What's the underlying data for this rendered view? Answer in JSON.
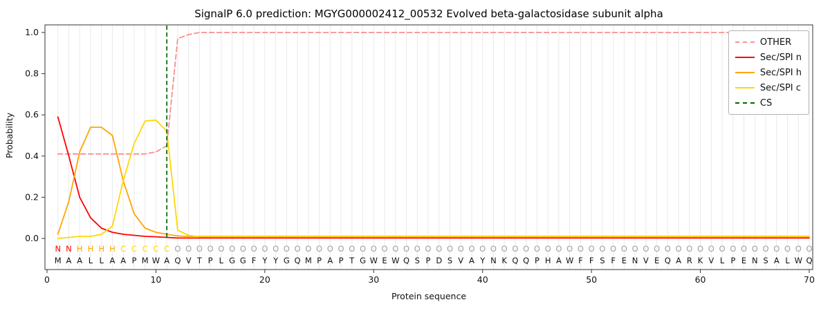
{
  "title": "SignalP 6.0 prediction: MGYG000002412_00532 Evolved beta-galactosidase subunit alpha",
  "axes": {
    "xlabel": "Protein sequence",
    "ylabel": "Probability",
    "x_ticks": [
      0,
      10,
      20,
      30,
      40,
      50,
      60,
      70
    ],
    "y_ticks": [
      0.0,
      0.2,
      0.4,
      0.6,
      0.8,
      1.0
    ],
    "xlim": [
      0,
      70.5
    ],
    "ylim": [
      0,
      1.05
    ],
    "grid": "vertical-per-residue"
  },
  "legend": {
    "position": "upper-right",
    "entries": [
      {
        "label": "OTHER",
        "color": "#f78f8f",
        "dash": true
      },
      {
        "label": "Sec/SPI n",
        "color": "#ff0000",
        "dash": false
      },
      {
        "label": "Sec/SPI h",
        "color": "#ffa500",
        "dash": false
      },
      {
        "label": "Sec/SPI c",
        "color": "#ffd700",
        "dash": false
      },
      {
        "label": "CS",
        "color": "#006400",
        "dash": true
      }
    ]
  },
  "chart_data": {
    "type": "line",
    "x_start": 1,
    "x_step": 1,
    "cs_position": 11,
    "cs_color": "#006400",
    "sequence": "MAALLAAPMWAQVTPLGGFYYGQMPAPTGWEWQSPDSVAYNKQQPHAWFFSFENVEQARKVLPENSALWQ",
    "regions": "NNHHHHCCCCCOOOOOOOOOOOOOOOOOOOOOOOOOOOOOOOOOOOOOOOOOOOOOOOOOOOOOOOOOO",
    "region_colors": {
      "N": "#ff0000",
      "H": "#ffa500",
      "C": "#ffd700",
      "O": "#9e9e9e"
    },
    "series": [
      {
        "name": "OTHER",
        "color": "#f78f8f",
        "dash": true,
        "values": [
          0.41,
          0.41,
          0.41,
          0.41,
          0.41,
          0.41,
          0.41,
          0.41,
          0.41,
          0.42,
          0.45,
          0.97,
          0.99,
          1.0,
          1.0,
          1.0,
          1.0,
          1.0,
          1.0,
          1.0,
          1.0,
          1.0,
          1.0,
          1.0,
          1.0,
          1.0,
          1.0,
          1.0,
          1.0,
          1.0,
          1.0,
          1.0,
          1.0,
          1.0,
          1.0,
          1.0,
          1.0,
          1.0,
          1.0,
          1.0,
          1.0,
          1.0,
          1.0,
          1.0,
          1.0,
          1.0,
          1.0,
          1.0,
          1.0,
          1.0,
          1.0,
          1.0,
          1.0,
          1.0,
          1.0,
          1.0,
          1.0,
          1.0,
          1.0,
          1.0,
          1.0,
          1.0,
          1.0,
          1.0,
          1.0,
          1.0,
          1.0,
          1.0,
          1.0,
          1.0
        ]
      },
      {
        "name": "Sec/SPI n",
        "color": "#ff0000",
        "dash": false,
        "values": [
          0.59,
          0.4,
          0.2,
          0.1,
          0.05,
          0.03,
          0.02,
          0.015,
          0.01,
          0.008,
          0.005,
          0.002,
          0.002,
          0.002,
          0.002,
          0.002,
          0.002,
          0.002,
          0.002,
          0.002,
          0.002,
          0.002,
          0.002,
          0.002,
          0.002,
          0.002,
          0.002,
          0.002,
          0.002,
          0.002,
          0.002,
          0.002,
          0.002,
          0.002,
          0.002,
          0.002,
          0.002,
          0.002,
          0.002,
          0.002,
          0.002,
          0.002,
          0.002,
          0.002,
          0.002,
          0.002,
          0.002,
          0.002,
          0.002,
          0.002,
          0.002,
          0.002,
          0.002,
          0.002,
          0.002,
          0.002,
          0.002,
          0.002,
          0.002,
          0.002,
          0.002,
          0.002,
          0.002,
          0.002,
          0.002,
          0.002,
          0.002,
          0.002,
          0.002,
          0.002
        ]
      },
      {
        "name": "Sec/SPI h",
        "color": "#ffa500",
        "dash": false,
        "values": [
          0.02,
          0.18,
          0.42,
          0.54,
          0.54,
          0.5,
          0.28,
          0.12,
          0.05,
          0.03,
          0.02,
          0.012,
          0.01,
          0.01,
          0.01,
          0.01,
          0.01,
          0.01,
          0.01,
          0.01,
          0.01,
          0.01,
          0.01,
          0.01,
          0.01,
          0.01,
          0.01,
          0.01,
          0.01,
          0.01,
          0.01,
          0.01,
          0.01,
          0.01,
          0.01,
          0.01,
          0.01,
          0.01,
          0.01,
          0.01,
          0.01,
          0.01,
          0.01,
          0.01,
          0.01,
          0.01,
          0.01,
          0.01,
          0.01,
          0.01,
          0.01,
          0.01,
          0.01,
          0.01,
          0.01,
          0.01,
          0.01,
          0.01,
          0.01,
          0.01,
          0.01,
          0.01,
          0.01,
          0.01,
          0.01,
          0.01,
          0.01,
          0.01,
          0.01,
          0.01
        ]
      },
      {
        "name": "Sec/SPI c",
        "color": "#ffd700",
        "dash": false,
        "values": [
          0.0,
          0.005,
          0.01,
          0.01,
          0.02,
          0.06,
          0.28,
          0.46,
          0.57,
          0.575,
          0.52,
          0.04,
          0.015,
          0.008,
          0.008,
          0.008,
          0.008,
          0.008,
          0.008,
          0.008,
          0.008,
          0.008,
          0.008,
          0.008,
          0.008,
          0.008,
          0.008,
          0.008,
          0.008,
          0.008,
          0.008,
          0.008,
          0.008,
          0.008,
          0.008,
          0.008,
          0.008,
          0.008,
          0.008,
          0.008,
          0.008,
          0.008,
          0.008,
          0.008,
          0.008,
          0.008,
          0.008,
          0.008,
          0.008,
          0.008,
          0.008,
          0.008,
          0.008,
          0.008,
          0.008,
          0.008,
          0.008,
          0.008,
          0.008,
          0.008,
          0.008,
          0.008,
          0.008,
          0.008,
          0.008,
          0.008,
          0.008,
          0.008,
          0.008,
          0.008
        ]
      }
    ]
  }
}
